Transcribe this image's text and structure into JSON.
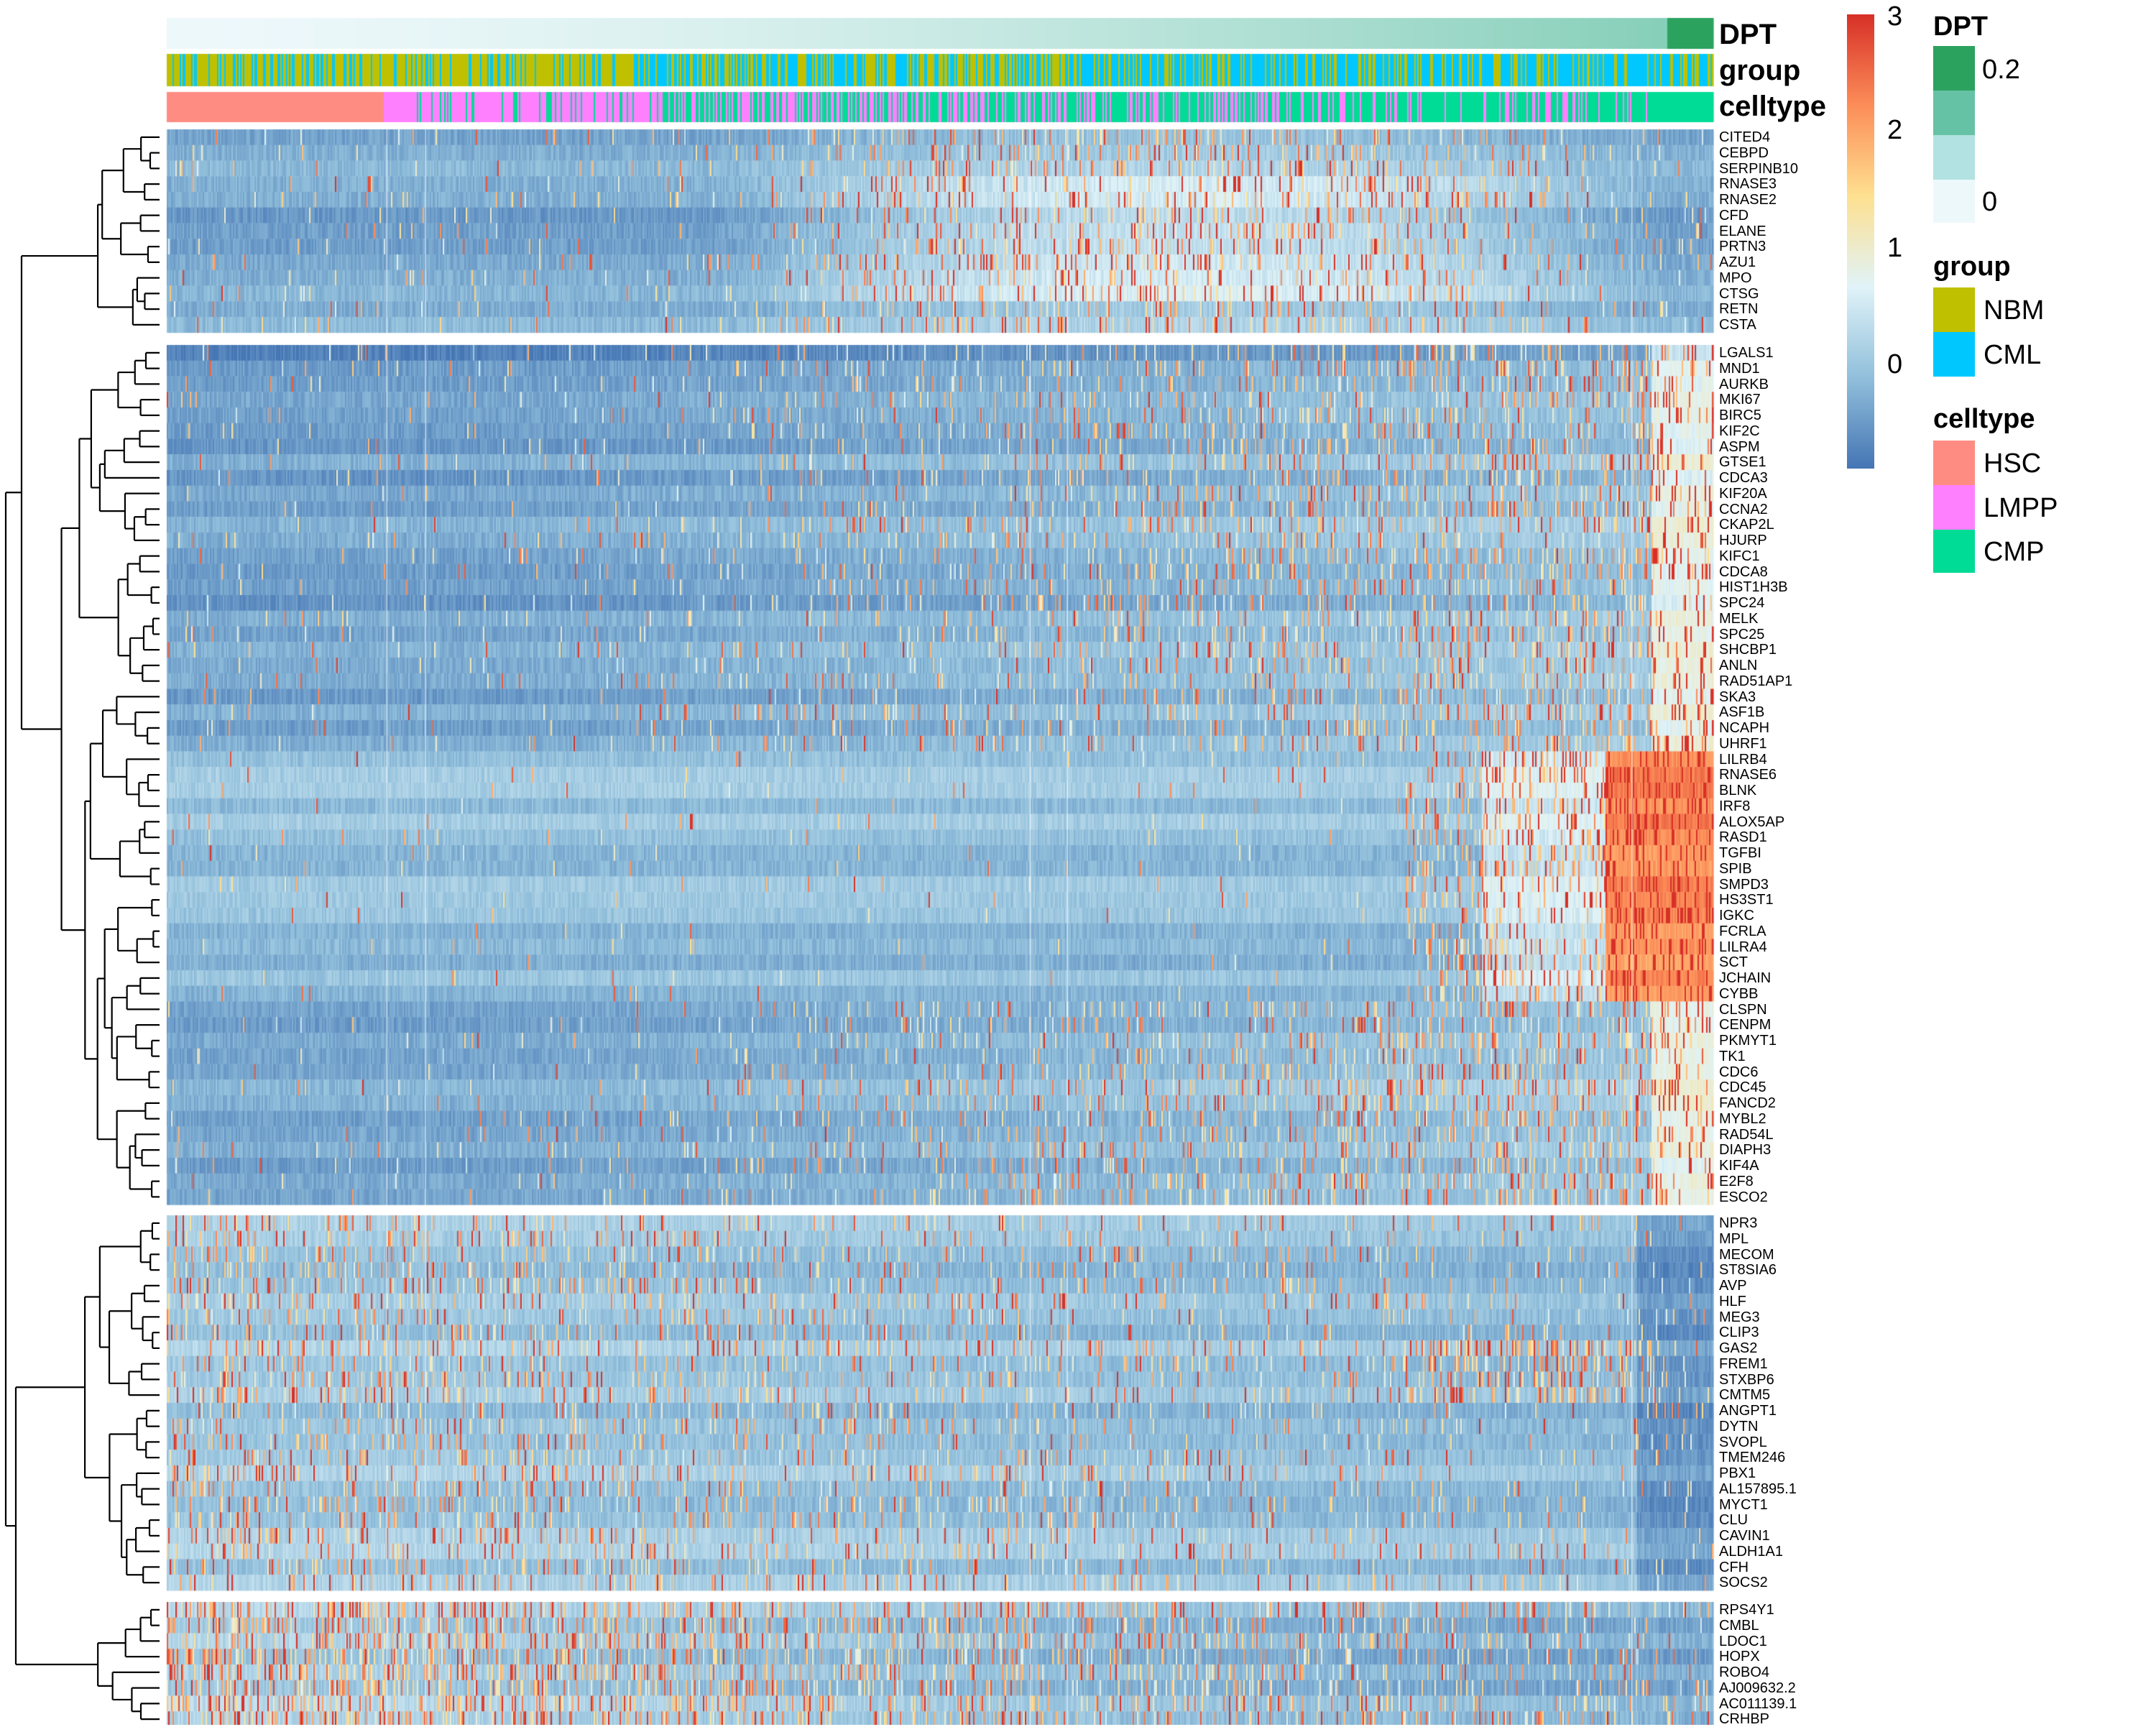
{
  "chart_data": {
    "type": "heatmap",
    "column_annotations": [
      {
        "name": "DPT",
        "kind": "continuous"
      },
      {
        "name": "group",
        "kind": "categorical"
      },
      {
        "name": "celltype",
        "kind": "categorical"
      }
    ],
    "colorbar": {
      "range": [
        -0.9,
        3
      ],
      "ticks": [
        "3",
        "2",
        "1",
        "0"
      ],
      "colors": [
        "#4575B4",
        "#91BFDB",
        "#E0F3F8",
        "#FEE090",
        "#FC8D59",
        "#D73027"
      ]
    },
    "legends": {
      "dpt": {
        "title": "DPT",
        "labels": [
          "0.2",
          "0"
        ],
        "colors": [
          "#2CA25F",
          "#66C2A4",
          "#B2E2E2",
          "#EDF8FB"
        ]
      },
      "group": {
        "title": "group",
        "items": [
          {
            "label": "NBM",
            "color": "#BFC000"
          },
          {
            "label": "CML",
            "color": "#00C8FF"
          }
        ]
      },
      "celltype": {
        "title": "celltype",
        "items": [
          {
            "label": "HSC",
            "color": "#FF8C82"
          },
          {
            "label": "LMPP",
            "color": "#FF80FF"
          },
          {
            "label": "CMP",
            "color": "#00DB96"
          }
        ]
      }
    },
    "row_blocks": [
      [
        "CITED4",
        "CEBPD",
        "SERPINB10",
        "RNASE3",
        "RNASE2",
        "CFD",
        "ELANE",
        "PRTN3",
        "AZU1",
        "MPO",
        "CTSG",
        "RETN",
        "CSTA"
      ],
      [
        "LGALS1",
        "MND1",
        "AURKB",
        "MKI67",
        "BIRC5",
        "KIF2C",
        "ASPM",
        "GTSE1",
        "CDCA3",
        "KIF20A",
        "CCNA2",
        "CKAP2L",
        "HJURP",
        "KIFC1",
        "CDCA8",
        "HIST1H3B",
        "SPC24",
        "MELK",
        "SPC25",
        "SHCBP1",
        "ANLN",
        "RAD51AP1",
        "SKA3",
        "ASF1B",
        "NCAPH",
        "UHRF1",
        "LILRB4",
        "RNASE6",
        "BLNK",
        "IRF8",
        "ALOX5AP",
        "RASD1",
        "TGFBI",
        "SPIB",
        "SMPD3",
        "HS3ST1",
        "IGKC",
        "FCRLA",
        "LILRA4",
        "SCT",
        "JCHAIN",
        "CYBB",
        "CLSPN",
        "CENPM",
        "PKMYT1",
        "TK1",
        "CDC6",
        "CDC45",
        "FANCD2",
        "MYBL2",
        "RAD54L",
        "DIAPH3",
        "KIF4A",
        "E2F8",
        "ESCO2"
      ],
      [
        "NPR3",
        "MPL",
        "MECOM",
        "ST8SIA6",
        "AVP",
        "HLF",
        "MEG3",
        "CLIP3",
        "GAS2",
        "FREM1",
        "STXBP6",
        "CMTM5",
        "ANGPT1",
        "DYTN",
        "SVOPL",
        "TMEM246",
        "PBX1",
        "AL157895.1",
        "MYCT1",
        "CLU",
        "CAVIN1",
        "ALDH1A1",
        "CFH",
        "SOCS2"
      ],
      [
        "RPS4Y1",
        "CMBL",
        "LDOC1",
        "HOPX",
        "ROBO4",
        "AJ009632.2",
        "AC011139.1",
        "CRHBP"
      ]
    ]
  }
}
